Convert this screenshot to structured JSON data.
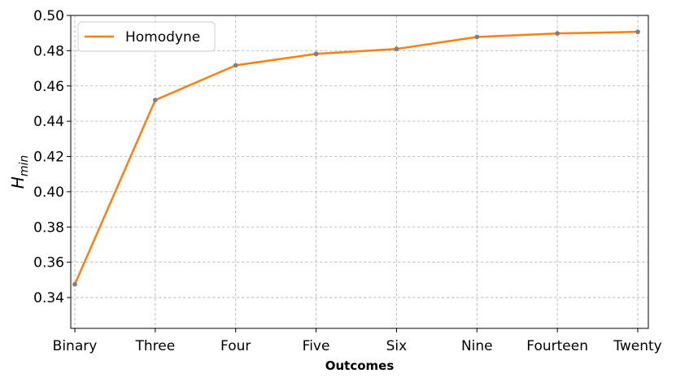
{
  "chart_data": {
    "type": "line",
    "categories": [
      "Binary",
      "Three",
      "Four",
      "Five",
      "Six",
      "Nine",
      "Fourteen",
      "Twenty"
    ],
    "series": [
      {
        "name": "Homodyne",
        "values": [
          0.3475,
          0.452,
          0.4717,
          0.4782,
          0.481,
          0.4878,
          0.4898,
          0.4907
        ],
        "color": "#ff7f0e",
        "marker_color": "#808080"
      }
    ],
    "xlabel": "Outcomes",
    "ylabel_main": "H",
    "ylabel_sub": "min",
    "ylim": [
      0.3225,
      0.5
    ],
    "yticks": [
      0.34,
      0.36,
      0.38,
      0.4,
      0.42,
      0.44,
      0.46,
      0.48,
      0.5
    ],
    "ytick_labels": [
      "0.34",
      "0.36",
      "0.38",
      "0.40",
      "0.42",
      "0.44",
      "0.46",
      "0.48",
      "0.50"
    ],
    "grid": true,
    "legend_position": "upper-left"
  }
}
